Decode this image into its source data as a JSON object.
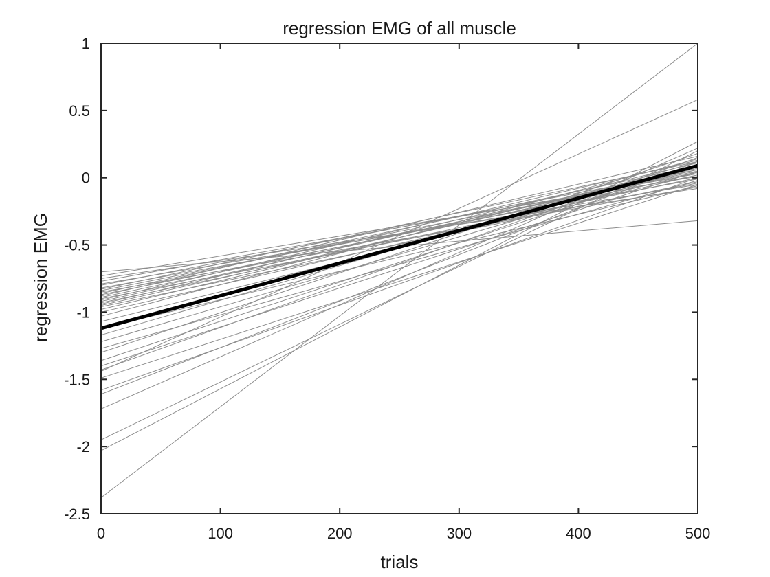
{
  "chart_data": {
    "type": "line",
    "title": "regression EMG of all muscle",
    "xlabel": "trials",
    "ylabel": "regression EMG",
    "xlim": [
      0,
      500
    ],
    "ylim": [
      -2.5,
      1
    ],
    "xticks": [
      0,
      100,
      200,
      300,
      400,
      500
    ],
    "yticks": [
      -2.5,
      -2,
      -1.5,
      -1,
      -0.5,
      0,
      0.5,
      1
    ],
    "xtick_labels": [
      "0",
      "100",
      "200",
      "300",
      "400",
      "500"
    ],
    "ytick_labels": [
      "-2.5",
      "-2",
      "-1.5",
      "-1",
      "-0.5",
      "0",
      "0.5",
      "1"
    ],
    "grid": false,
    "colors": {
      "thin": "#8c8c8c",
      "mean": "#000000",
      "axis": "#262626"
    },
    "individual_lines": [
      {
        "y0": -2.38,
        "y1": 1.0
      },
      {
        "y0": -1.44,
        "y1": 0.58
      },
      {
        "y0": -2.03,
        "y1": 0.27
      },
      {
        "y0": -1.95,
        "y1": 0.2
      },
      {
        "y0": -1.72,
        "y1": 0.22
      },
      {
        "y0": -1.61,
        "y1": 0.12
      },
      {
        "y0": -1.58,
        "y1": 0.0
      },
      {
        "y0": -1.49,
        "y1": -0.05
      },
      {
        "y0": -1.43,
        "y1": 0.15
      },
      {
        "y0": -1.4,
        "y1": 0.05
      },
      {
        "y0": -1.36,
        "y1": 0.1
      },
      {
        "y0": -1.3,
        "y1": 0.18
      },
      {
        "y0": -1.27,
        "y1": -0.02
      },
      {
        "y0": -1.22,
        "y1": 0.08
      },
      {
        "y0": -1.17,
        "y1": 0.12
      },
      {
        "y0": -1.12,
        "y1": -0.06
      },
      {
        "y0": -1.07,
        "y1": 0.04
      },
      {
        "y0": -1.03,
        "y1": 0.14
      },
      {
        "y0": -1.0,
        "y1": 0.02
      },
      {
        "y0": -0.98,
        "y1": 0.09
      },
      {
        "y0": -0.96,
        "y1": -0.03
      },
      {
        "y0": -0.95,
        "y1": 0.06
      },
      {
        "y0": -0.94,
        "y1": 0.11
      },
      {
        "y0": -0.93,
        "y1": 0.0
      },
      {
        "y0": -0.92,
        "y1": 0.07
      },
      {
        "y0": -0.91,
        "y1": 0.13
      },
      {
        "y0": -0.9,
        "y1": -0.04
      },
      {
        "y0": -0.89,
        "y1": 0.05
      },
      {
        "y0": -0.88,
        "y1": 0.16
      },
      {
        "y0": -0.87,
        "y1": 0.02
      },
      {
        "y0": -0.86,
        "y1": 0.09
      },
      {
        "y0": -0.85,
        "y1": -0.07
      },
      {
        "y0": -0.84,
        "y1": 0.04
      },
      {
        "y0": -0.83,
        "y1": 0.12
      },
      {
        "y0": -0.82,
        "y1": -0.01
      },
      {
        "y0": -0.8,
        "y1": 0.06
      },
      {
        "y0": -0.79,
        "y1": -0.05
      },
      {
        "y0": -0.77,
        "y1": 0.03
      },
      {
        "y0": -0.75,
        "y1": -0.08
      },
      {
        "y0": -0.73,
        "y1": 0.01
      },
      {
        "y0": -0.7,
        "y1": -0.32
      }
    ],
    "mean_line": {
      "y0": -1.12,
      "y1": 0.09
    }
  }
}
